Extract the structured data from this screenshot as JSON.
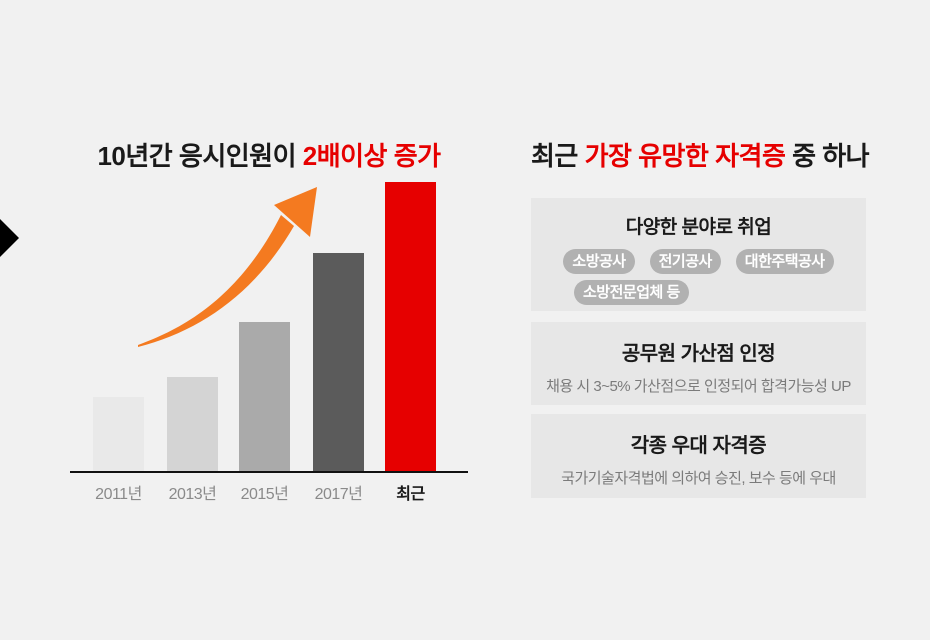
{
  "page": {
    "background": "#f1f1f1",
    "marker_color": "#000000"
  },
  "colors": {
    "accent_red": "#e60000",
    "arrow_orange": "#f47a20",
    "box_bg": "#e7e7e7",
    "pill_bg": "#b1b1b1",
    "text_dark": "#1a1a1a",
    "axis_label_gray": "#8a8a8a",
    "subtext_gray": "#7b7b7b"
  },
  "chart_section": {
    "title": {
      "pre": "10년간 응시인원이 ",
      "highlight": "2배이상 증가",
      "post": ""
    }
  },
  "chart_data": {
    "type": "bar",
    "title": "10년간 응시인원이 2배이상 증가",
    "categories": [
      "2011년",
      "2013년",
      "2015년",
      "2017년",
      "최근"
    ],
    "values": [
      74,
      94,
      149,
      218,
      289
    ],
    "values_note": "no numeric axis shown; values are relative bar heights in pixels",
    "bar_colors": [
      "#e9e9e9",
      "#d4d4d4",
      "#aaaaaa",
      "#5b5b5b",
      "#e60000"
    ],
    "xlabel": "",
    "ylabel": "",
    "grid": false,
    "legend": false,
    "annotation": "orange upward growth arrow over bars"
  },
  "right_panel": {
    "title": {
      "pre": "최근 ",
      "highlight": "가장 유망한 자격증",
      "post": " 중 하나"
    },
    "boxes": [
      {
        "title": "다양한 분야로 취업",
        "pill_rows": [
          [
            "소방공사",
            "전기공사",
            "대한주택공사"
          ],
          [
            "소방전문업체 등"
          ]
        ]
      },
      {
        "title": "공무원 가산점 인정",
        "subtitle": "채용 시 3~5% 가산점으로 인정되어 합격가능성 UP"
      },
      {
        "title": "각종 우대 자격증",
        "subtitle": "국가기술자격법에 의하여 승진, 보수 등에 우대"
      }
    ]
  }
}
